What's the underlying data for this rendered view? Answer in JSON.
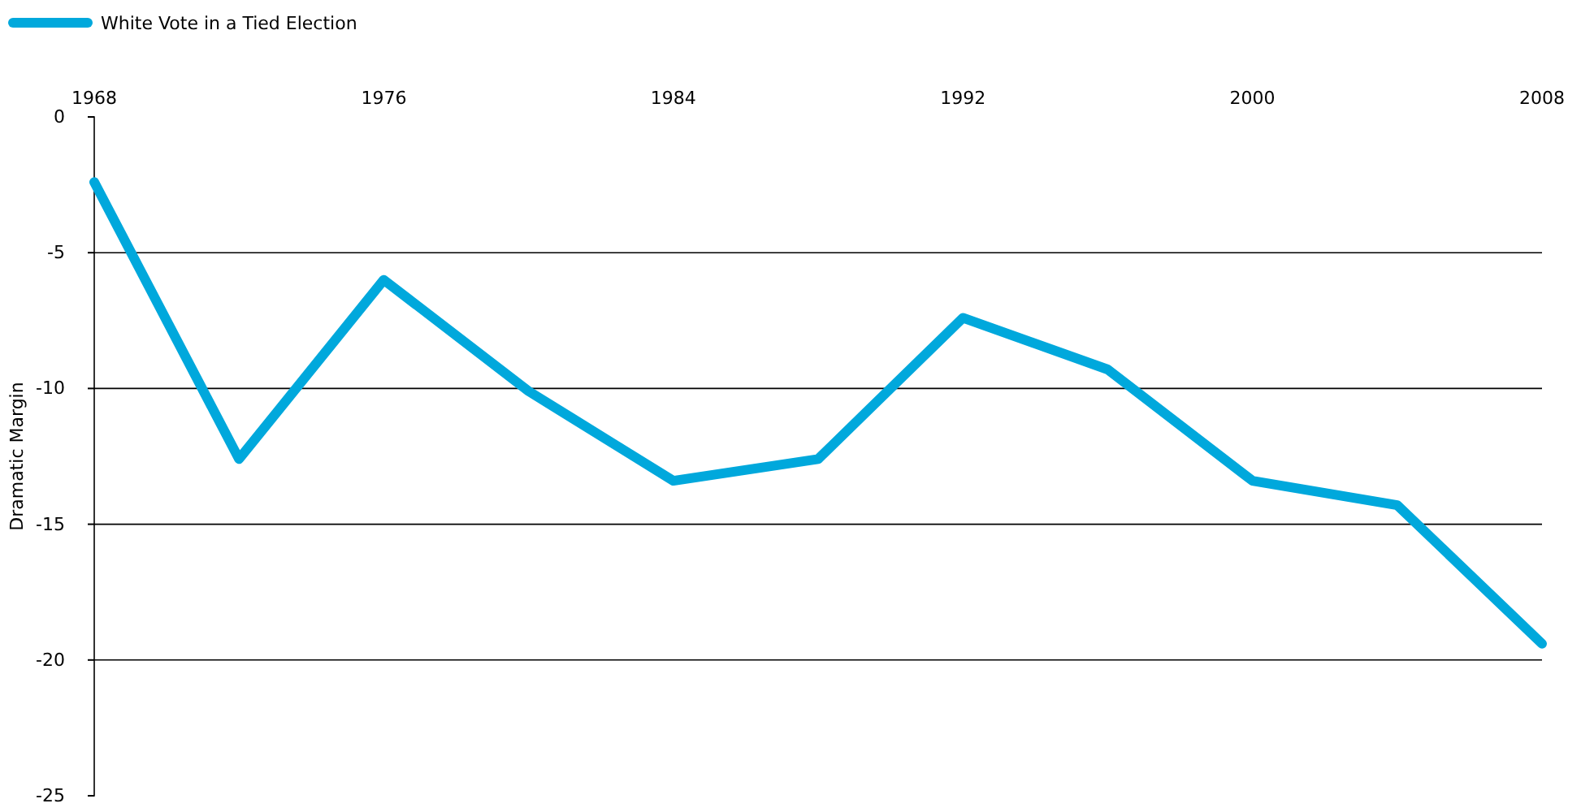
{
  "chart_data": {
    "type": "line",
    "ylabel": "Dramatic Margin",
    "x": [
      1968,
      1972,
      1976,
      1980,
      1984,
      1988,
      1992,
      1996,
      2000,
      2004,
      2008
    ],
    "series": [
      {
        "name": "White Vote in a Tied Election",
        "color": "#00a8dc",
        "values": [
          -2.4,
          -12.6,
          -6.0,
          -10.1,
          -13.4,
          -12.6,
          -7.4,
          -9.3,
          -13.4,
          -14.3,
          -19.4
        ]
      }
    ],
    "xlim": [
      1968,
      2008
    ],
    "xticks": [
      1968,
      1976,
      1984,
      1992,
      2000,
      2008
    ],
    "ylim": [
      -25,
      0
    ],
    "yticks": [
      0,
      -5,
      -10,
      -15,
      -20,
      -25
    ],
    "grid": "y",
    "legend": "top left",
    "marker": "none",
    "line_style": "solid"
  }
}
